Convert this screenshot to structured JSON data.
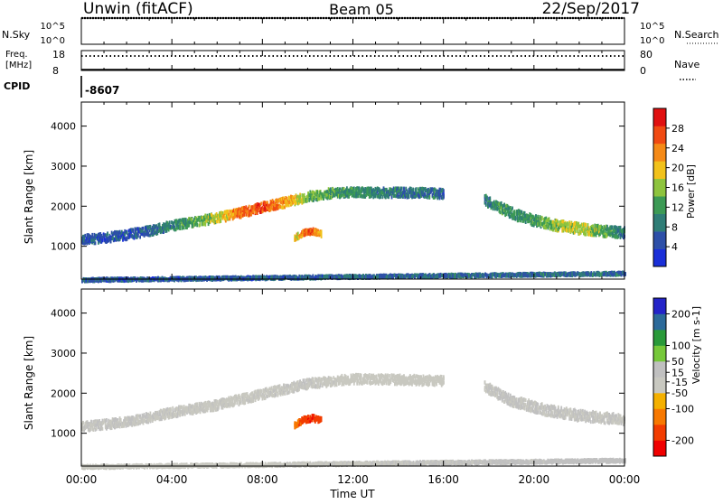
{
  "header": {
    "station": "Unwin (fitACF)",
    "beam": "Beam 05",
    "date": "22/Sep/2017"
  },
  "summary": {
    "nsky_label": "N.Sky",
    "nsky_ticks": [
      "10^5",
      "10^0"
    ],
    "nsearch_label": "N.Search",
    "freq_label": "Freq.",
    "freq_unit": "[MHz]",
    "freq_ticks": [
      "18",
      "8"
    ],
    "nave_label": "Nave",
    "nave_ticks": [
      "80",
      "0"
    ],
    "cpid_label": "CPID",
    "cpid_value": "-8607"
  },
  "colors": {
    "power_scale": [
      "#1a2fd8",
      "#2d4fa8",
      "#2f7d76",
      "#3c9a55",
      "#8ec43e",
      "#f2c21b",
      "#f58a17",
      "#f04a12",
      "#e01010"
    ],
    "velocity_scale": [
      "#f00000",
      "#f23c00",
      "#f77800",
      "#f4b000",
      "#c8c8c0",
      "#c0c0c0",
      "#76c83a",
      "#2a9a3a",
      "#2c6a9a",
      "#2424c8"
    ]
  },
  "chart_data": [
    {
      "type": "heatmap",
      "title": "Power",
      "xlabel": "",
      "ylabel": "Slant Range [km]",
      "xlim": [
        "00:00",
        "24:00"
      ],
      "ylim": [
        180,
        4600
      ],
      "y_ticks": [
        1000,
        2000,
        3000,
        4000
      ],
      "colorbar": {
        "label": "Power [dB]",
        "range": [
          0,
          32
        ],
        "ticks": [
          4,
          8,
          12,
          16,
          20,
          24,
          28
        ]
      },
      "echo_regions": [
        {
          "name": "main band",
          "t": [
            0.0,
            1.0,
            2.0,
            3.0,
            4.0,
            5.0,
            6.0,
            7.0,
            8.0,
            9.0,
            10.0,
            11.0,
            12.0,
            13.0,
            14.5,
            15.5,
            16.0
          ],
          "range": [
            1200,
            1250,
            1330,
            1430,
            1560,
            1660,
            1750,
            1880,
            2020,
            2140,
            2280,
            2370,
            2400,
            2380,
            2380,
            2370,
            2350
          ],
          "power": [
            6,
            5,
            5,
            7,
            10,
            13,
            18,
            24,
            27,
            22,
            14,
            12,
            11,
            10,
            8,
            8,
            6
          ]
        },
        {
          "name": "near-range cluster",
          "t": [
            9.4,
            9.8,
            10.2,
            10.6
          ],
          "range": [
            1250,
            1380,
            1420,
            1350
          ],
          "power": [
            18,
            24,
            26,
            20
          ]
        },
        {
          "name": "late band",
          "t": [
            17.8,
            18.5,
            19.2,
            20.0,
            21.0,
            22.0,
            23.0,
            24.0
          ],
          "range": [
            2200,
            2000,
            1820,
            1680,
            1560,
            1480,
            1420,
            1380
          ],
          "power": [
            8,
            12,
            10,
            11,
            16,
            18,
            14,
            8
          ]
        },
        {
          "name": "ground scatter floor",
          "t": [
            0,
            24
          ],
          "range": [
            200,
            360
          ],
          "power": [
            6,
            8
          ]
        }
      ]
    },
    {
      "type": "heatmap",
      "title": "Velocity",
      "xlabel": "Time UT",
      "ylabel": "Slant Range [km]",
      "xlim": [
        "00:00",
        "24:00"
      ],
      "ylim": [
        180,
        4600
      ],
      "x_ticks": [
        "00:00",
        "04:00",
        "08:00",
        "12:00",
        "16:00",
        "20:00",
        "00:00"
      ],
      "y_ticks": [
        1000,
        2000,
        3000,
        4000
      ],
      "colorbar": {
        "label": "Velocity [m s-1]",
        "range": [
          -250,
          250
        ],
        "ticks": [
          200,
          100,
          50,
          15,
          -15,
          -50,
          -100,
          -200
        ]
      },
      "echo_regions": [
        {
          "name": "main band",
          "t": [
            0.0,
            2.0,
            4.0,
            6.0,
            8.0,
            10.0,
            12.0,
            14.0,
            16.0
          ],
          "range": [
            1200,
            1330,
            1560,
            1750,
            2020,
            2280,
            2400,
            2380,
            2350
          ],
          "velocity": [
            0,
            0,
            -5,
            -10,
            -10,
            0,
            -20,
            -30,
            -20
          ]
        },
        {
          "name": "near-range cluster",
          "t": [
            9.4,
            9.8,
            10.2,
            10.6
          ],
          "range": [
            1250,
            1380,
            1420,
            1350
          ],
          "velocity": [
            -120,
            -180,
            -200,
            -150
          ]
        },
        {
          "name": "late band",
          "t": [
            17.8,
            19.0,
            20.5,
            22.0,
            24.0
          ],
          "range": [
            2200,
            1850,
            1620,
            1480,
            1380
          ],
          "velocity": [
            0,
            5,
            0,
            0,
            0
          ]
        },
        {
          "name": "ground scatter floor",
          "t": [
            0,
            24
          ],
          "range": [
            200,
            360
          ],
          "velocity": [
            -30,
            20
          ]
        }
      ]
    }
  ]
}
